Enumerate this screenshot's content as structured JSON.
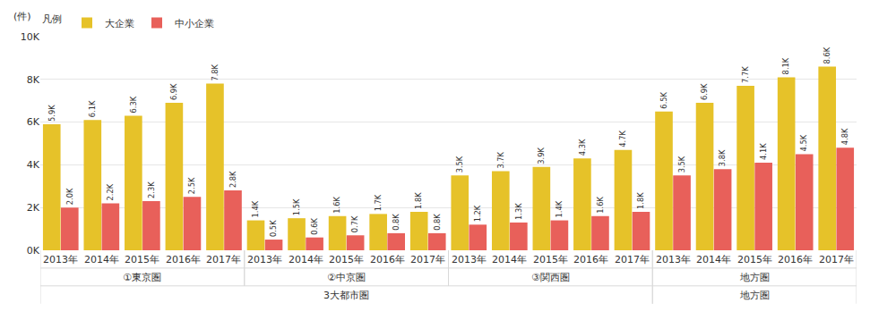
{
  "chart_data": {
    "type": "bar",
    "y_label": "(件)",
    "legend_title": "凡例",
    "legend": "top-left",
    "grid": true,
    "data_labels": true,
    "categories": [
      "2013年",
      "2014年",
      "2015年",
      "2016年",
      "2017年",
      "2013年",
      "2014年",
      "2015年",
      "2016年",
      "2017年",
      "2013年",
      "2014年",
      "2015年",
      "2016年",
      "2017年",
      "2013年",
      "2014年",
      "2015年",
      "2016年",
      "2017年"
    ],
    "category_groups": [
      "①東京圏",
      "①東京圏",
      "①東京圏",
      "①東京圏",
      "①東京圏",
      "②中京圏",
      "②中京圏",
      "②中京圏",
      "②中京圏",
      "②中京圏",
      "③関西圏",
      "③関西圏",
      "③関西圏",
      "③関西圏",
      "③関西圏",
      "地方圏",
      "地方圏",
      "地方圏",
      "地方圏",
      "地方圏"
    ],
    "category_supergroups": [
      "3大都市圏",
      "3大都市圏",
      "3大都市圏",
      "3大都市圏",
      "3大都市圏",
      "3大都市圏",
      "3大都市圏",
      "3大都市圏",
      "3大都市圏",
      "3大都市圏",
      "3大都市圏",
      "3大都市圏",
      "3大都市圏",
      "3大都市圏",
      "3大都市圏",
      "地方圏",
      "地方圏",
      "地方圏",
      "地方圏",
      "地方圏"
    ],
    "ylim": [
      0,
      10000
    ],
    "yticks": [
      {
        "value": 0,
        "label": "0K"
      },
      {
        "value": 2000,
        "label": "2K"
      },
      {
        "value": 4000,
        "label": "4K"
      },
      {
        "value": 6000,
        "label": "6K"
      },
      {
        "value": 8000,
        "label": "8K"
      },
      {
        "value": 10000,
        "label": "10K"
      }
    ],
    "series": [
      {
        "name": "大企業",
        "color": "#E6C229",
        "values": [
          5900,
          6100,
          6300,
          6900,
          7800,
          1400,
          1500,
          1600,
          1700,
          1800,
          3500,
          3700,
          3900,
          4300,
          4700,
          6500,
          6900,
          7700,
          8100,
          8600
        ],
        "value_labels": [
          "5.9K",
          "6.1K",
          "6.3K",
          "6.9K",
          "7.8K",
          "1.4K",
          "1.5K",
          "1.6K",
          "1.7K",
          "1.8K",
          "3.5K",
          "3.7K",
          "3.9K",
          "4.3K",
          "4.7K",
          "6.5K",
          "6.9K",
          "7.7K",
          "8.1K",
          "8.6K"
        ]
      },
      {
        "name": "中小企業",
        "color": "#E8605A",
        "values": [
          2000,
          2200,
          2300,
          2500,
          2800,
          500,
          600,
          700,
          800,
          800,
          1200,
          1300,
          1400,
          1600,
          1800,
          3500,
          3800,
          4100,
          4500,
          4800
        ],
        "value_labels": [
          "2.0K",
          "2.2K",
          "2.3K",
          "2.5K",
          "2.8K",
          "0.5K",
          "0.6K",
          "0.7K",
          "0.8K",
          "0.8K",
          "1.2K",
          "1.3K",
          "1.4K",
          "1.6K",
          "1.8K",
          "3.5K",
          "3.8K",
          "4.1K",
          "4.5K",
          "4.8K"
        ]
      }
    ]
  }
}
